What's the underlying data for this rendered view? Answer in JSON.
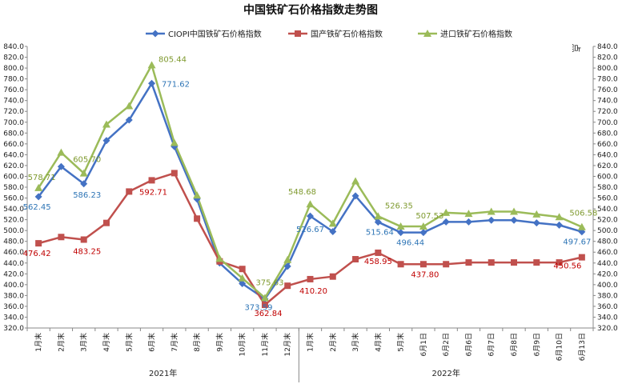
{
  "chart_data": {
    "type": "line",
    "title": "中国铁矿石价格指数走势图",
    "y_unit_right": "点",
    "ylim": [
      320,
      840
    ],
    "ytick_step": 20,
    "grid": false,
    "legend_position": "top",
    "categories": [
      "1月末",
      "2月末",
      "3月末",
      "4月末",
      "5月末",
      "6月末",
      "7月末",
      "8月末",
      "9月末",
      "10月末",
      "11月末",
      "12月末",
      "1月末",
      "2月末",
      "3月末",
      "4月末",
      "5月末",
      "6月1日",
      "6月2日",
      "6月6日",
      "6月7日",
      "6月8日",
      "6月9日",
      "6月10日",
      "6月13日"
    ],
    "year_groups": [
      {
        "label": "2021年",
        "start": 0,
        "end": 11
      },
      {
        "label": "2022年",
        "start": 12,
        "end": 24
      }
    ],
    "series": [
      {
        "name": "CIOPI中国铁矿石价格指数",
        "color": "#4472C4",
        "label_color": "#2E75B6",
        "marker": "diamond",
        "values": [
          562.45,
          618,
          586.23,
          666,
          704,
          771.62,
          655,
          558,
          440,
          402,
          373.59,
          434,
          526.67,
          498,
          564,
          515.64,
          496.44,
          496.44,
          516,
          516,
          519,
          519,
          514,
          510,
          497.67
        ],
        "labels": {
          "0": "562.45",
          "2": "586.23",
          "5": "771.62",
          "10": "373.59",
          "12": "526.67",
          "15": "515.64",
          "16": "496.44",
          "24": "497.67"
        }
      },
      {
        "name": "国产铁矿石价格指数",
        "color": "#C0504D",
        "label_color": "#C00000",
        "marker": "square",
        "values": [
          476.42,
          488,
          483.25,
          514,
          572,
          592.71,
          606,
          522,
          443,
          429,
          362.84,
          398,
          410.2,
          415,
          447,
          458.95,
          437.8,
          437.8,
          437.8,
          441,
          441,
          441,
          441,
          441,
          450.56
        ],
        "labels": {
          "0": "476.42",
          "2": "483.25",
          "5": "592.71",
          "10": "362.84",
          "12": "410.20",
          "15": "458.95",
          "17": "437.80",
          "24": "450.56"
        }
      },
      {
        "name": "进口铁矿石价格指数",
        "color": "#9BBB59",
        "label_color": "#7F9A2F",
        "marker": "triangle",
        "values": [
          578.71,
          644,
          605.7,
          696,
          730,
          805.44,
          662,
          565,
          448,
          412,
          375.63,
          446,
          548.68,
          513,
          591,
          526.35,
          507.53,
          507.53,
          533,
          531,
          535,
          535,
          530,
          525,
          506.58
        ],
        "labels": {
          "0": "578.71",
          "2": "605.70",
          "5": "805.44",
          "10": "375.63",
          "12": "548.68",
          "15": "526.35",
          "17": "507.53",
          "24": "506.58"
        }
      }
    ]
  }
}
